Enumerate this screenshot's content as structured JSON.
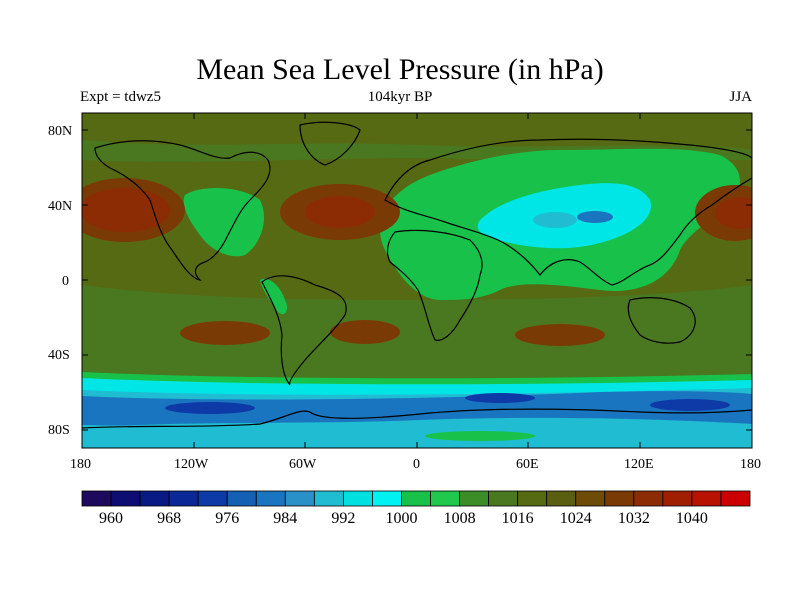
{
  "title": "Mean Sea Level Pressure (in hPa)",
  "left_label": "Expt = tdwz5",
  "center_label": "104kyr BP",
  "right_label": "JJA",
  "lat_ticks": [
    "80N",
    "40N",
    "0",
    "40S",
    "80S"
  ],
  "lon_ticks": [
    "180",
    "120W",
    "60W",
    "0",
    "60E",
    "120E",
    "180"
  ],
  "colorbar": {
    "colors": [
      "#1e0a5c",
      "#0d0d73",
      "#0a1a85",
      "#0a2896",
      "#0d3aa6",
      "#1560b5",
      "#1a75c0",
      "#2a90c8",
      "#1fbcd2",
      "#00e0e0",
      "#00f2f2",
      "#18c24a",
      "#20c84c",
      "#3c8c28",
      "#4a7820",
      "#566a14",
      "#5a5e10",
      "#6e4c08",
      "#7a3a06",
      "#8c2c04",
      "#a01e02",
      "#b81202",
      "#cc0000"
    ],
    "tick_labels": [
      "960",
      "968",
      "976",
      "984",
      "992",
      "1000",
      "1008",
      "1016",
      "1024",
      "1032",
      "1040"
    ]
  },
  "map_colors": {
    "background": "#566a14",
    "band_1016": "#4a7820",
    "land_low": "#18c24a",
    "cyan_low": "#00e6e6",
    "cyan_low2": "#1fbcd2",
    "blue_low": "#1a75c0",
    "blue_low2": "#0d3aa6",
    "high": "#7a3a06",
    "high_core": "#8c2c04",
    "high_core2": "#a01e02",
    "coast": "#000000"
  }
}
